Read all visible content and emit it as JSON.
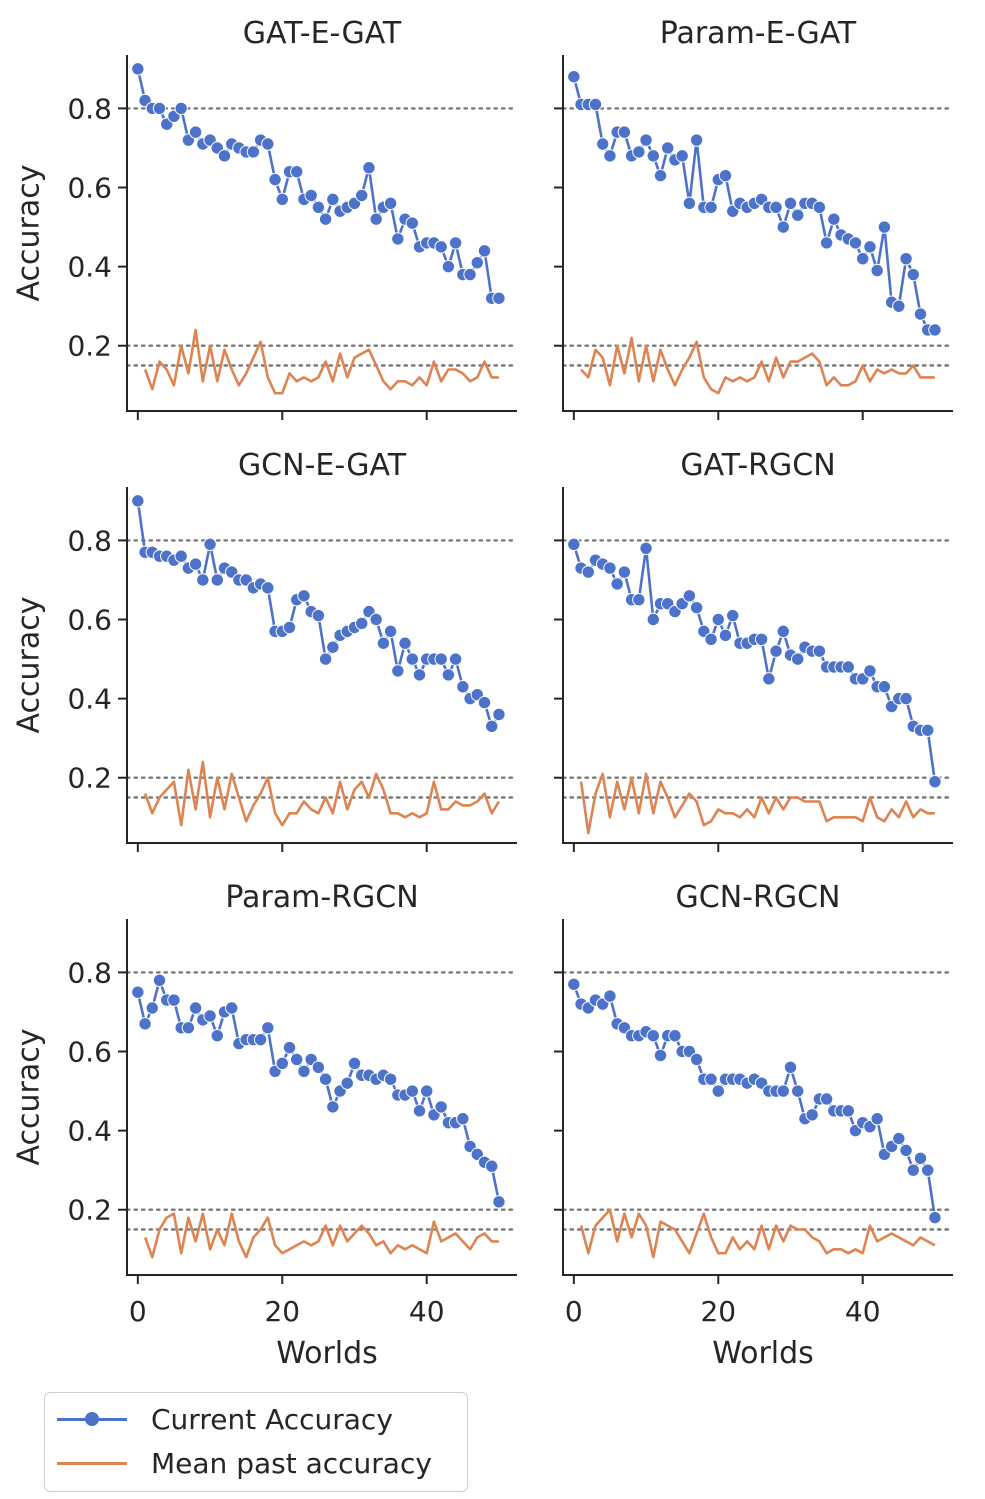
{
  "chart_data": {
    "type": "line",
    "xlabel": "Worlds",
    "ylabel": "Accuracy",
    "xlim": [
      -1.5,
      52.5
    ],
    "ylim": [
      0.035,
      0.935
    ],
    "xticks": [
      0,
      20,
      40
    ],
    "yticks": [
      0.2,
      0.4,
      0.6,
      0.8
    ],
    "reference_lines": [
      0.8,
      0.2,
      0.15
    ],
    "colors": {
      "current": "#4c72c9",
      "past": "#dd8452",
      "reference": "#7a7a7a"
    },
    "series_names": [
      "Current Accuracy",
      "Mean past accuracy"
    ],
    "legend_position": "bottom-left",
    "panels": [
      {
        "title": "GAT-E-GAT",
        "current": [
          0.9,
          0.82,
          0.8,
          0.8,
          0.76,
          0.78,
          0.8,
          0.72,
          0.74,
          0.71,
          0.72,
          0.7,
          0.68,
          0.71,
          0.7,
          0.69,
          0.69,
          0.72,
          0.71,
          0.62,
          0.57,
          0.64,
          0.64,
          0.57,
          0.58,
          0.55,
          0.52,
          0.57,
          0.54,
          0.55,
          0.56,
          0.58,
          0.65,
          0.52,
          0.55,
          0.56,
          0.47,
          0.52,
          0.51,
          0.45,
          0.46,
          0.46,
          0.45,
          0.4,
          0.46,
          0.38,
          0.38,
          0.41,
          0.44,
          0.32,
          0.32
        ],
        "past": [
          null,
          0.14,
          0.09,
          0.16,
          0.14,
          0.1,
          0.2,
          0.13,
          0.24,
          0.11,
          0.2,
          0.11,
          0.19,
          0.14,
          0.1,
          0.13,
          0.17,
          0.21,
          0.12,
          0.08,
          0.08,
          0.13,
          0.11,
          0.12,
          0.11,
          0.12,
          0.16,
          0.11,
          0.18,
          0.12,
          0.17,
          0.18,
          0.19,
          0.15,
          0.11,
          0.09,
          0.11,
          0.11,
          0.1,
          0.12,
          0.1,
          0.16,
          0.11,
          0.14,
          0.14,
          0.13,
          0.11,
          0.12,
          0.16,
          0.12,
          0.12
        ]
      },
      {
        "title": "Param-E-GAT",
        "current": [
          0.88,
          0.81,
          0.81,
          0.81,
          0.71,
          0.68,
          0.74,
          0.74,
          0.68,
          0.69,
          0.72,
          0.68,
          0.63,
          0.7,
          0.67,
          0.68,
          0.56,
          0.72,
          0.55,
          0.55,
          0.62,
          0.63,
          0.54,
          0.56,
          0.55,
          0.56,
          0.57,
          0.55,
          0.55,
          0.5,
          0.56,
          0.53,
          0.56,
          0.56,
          0.55,
          0.46,
          0.52,
          0.48,
          0.47,
          0.46,
          0.42,
          0.45,
          0.39,
          0.5,
          0.31,
          0.3,
          0.42,
          0.38,
          0.28,
          0.24,
          0.24
        ],
        "past": [
          null,
          0.14,
          0.12,
          0.19,
          0.17,
          0.1,
          0.2,
          0.13,
          0.22,
          0.11,
          0.2,
          0.11,
          0.19,
          0.14,
          0.1,
          0.14,
          0.17,
          0.21,
          0.12,
          0.09,
          0.08,
          0.12,
          0.11,
          0.12,
          0.11,
          0.12,
          0.16,
          0.11,
          0.17,
          0.12,
          0.16,
          0.16,
          0.17,
          0.18,
          0.16,
          0.1,
          0.12,
          0.1,
          0.1,
          0.11,
          0.15,
          0.11,
          0.14,
          0.13,
          0.14,
          0.13,
          0.13,
          0.15,
          0.12,
          0.12,
          0.12
        ]
      },
      {
        "title": "GCN-E-GAT",
        "current": [
          0.9,
          0.77,
          0.77,
          0.76,
          0.76,
          0.75,
          0.76,
          0.73,
          0.74,
          0.7,
          0.79,
          0.7,
          0.73,
          0.72,
          0.7,
          0.7,
          0.68,
          0.69,
          0.68,
          0.57,
          0.57,
          0.58,
          0.65,
          0.66,
          0.62,
          0.61,
          0.5,
          0.53,
          0.56,
          0.57,
          0.58,
          0.59,
          0.62,
          0.6,
          0.54,
          0.57,
          0.47,
          0.54,
          0.5,
          0.46,
          0.5,
          0.5,
          0.5,
          0.46,
          0.5,
          0.43,
          0.4,
          0.41,
          0.39,
          0.33,
          0.36
        ],
        "past": [
          null,
          0.16,
          0.11,
          0.15,
          0.17,
          0.19,
          0.08,
          0.22,
          0.12,
          0.24,
          0.1,
          0.2,
          0.12,
          0.21,
          0.15,
          0.09,
          0.13,
          0.16,
          0.2,
          0.11,
          0.08,
          0.11,
          0.11,
          0.14,
          0.12,
          0.11,
          0.15,
          0.11,
          0.19,
          0.12,
          0.17,
          0.19,
          0.15,
          0.21,
          0.17,
          0.11,
          0.11,
          0.1,
          0.11,
          0.1,
          0.11,
          0.19,
          0.12,
          0.12,
          0.14,
          0.13,
          0.13,
          0.14,
          0.16,
          0.11,
          0.14
        ]
      },
      {
        "title": "GAT-RGCN",
        "current": [
          0.79,
          0.73,
          0.72,
          0.75,
          0.74,
          0.73,
          0.69,
          0.72,
          0.65,
          0.65,
          0.78,
          0.6,
          0.64,
          0.64,
          0.62,
          0.64,
          0.66,
          0.63,
          0.57,
          0.55,
          0.6,
          0.56,
          0.61,
          0.54,
          0.54,
          0.55,
          0.55,
          0.45,
          0.52,
          0.57,
          0.51,
          0.5,
          0.53,
          0.52,
          0.52,
          0.48,
          0.48,
          0.48,
          0.48,
          0.45,
          0.45,
          0.47,
          0.43,
          0.43,
          0.38,
          0.4,
          0.4,
          0.33,
          0.32,
          0.32,
          0.19
        ],
        "past": [
          null,
          0.19,
          0.06,
          0.16,
          0.21,
          0.1,
          0.19,
          0.12,
          0.2,
          0.11,
          0.21,
          0.11,
          0.19,
          0.15,
          0.1,
          0.13,
          0.16,
          0.14,
          0.08,
          0.09,
          0.12,
          0.11,
          0.11,
          0.1,
          0.12,
          0.1,
          0.15,
          0.11,
          0.15,
          0.12,
          0.15,
          0.15,
          0.14,
          0.14,
          0.14,
          0.09,
          0.1,
          0.1,
          0.1,
          0.1,
          0.09,
          0.15,
          0.1,
          0.09,
          0.12,
          0.1,
          0.14,
          0.1,
          0.12,
          0.11,
          0.11
        ]
      },
      {
        "title": "Param-RGCN",
        "current": [
          0.75,
          0.67,
          0.71,
          0.78,
          0.73,
          0.73,
          0.66,
          0.66,
          0.71,
          0.68,
          0.69,
          0.64,
          0.7,
          0.71,
          0.62,
          0.63,
          0.63,
          0.63,
          0.66,
          0.55,
          0.57,
          0.61,
          0.58,
          0.55,
          0.58,
          0.56,
          0.53,
          0.46,
          0.5,
          0.52,
          0.57,
          0.54,
          0.54,
          0.53,
          0.54,
          0.53,
          0.49,
          0.49,
          0.5,
          0.45,
          0.5,
          0.44,
          0.46,
          0.42,
          0.42,
          0.43,
          0.36,
          0.34,
          0.32,
          0.31,
          0.22
        ],
        "past": [
          null,
          0.13,
          0.08,
          0.15,
          0.18,
          0.19,
          0.09,
          0.18,
          0.12,
          0.19,
          0.1,
          0.15,
          0.11,
          0.19,
          0.12,
          0.08,
          0.13,
          0.15,
          0.18,
          0.11,
          0.09,
          0.1,
          0.11,
          0.12,
          0.11,
          0.12,
          0.16,
          0.11,
          0.16,
          0.12,
          0.14,
          0.16,
          0.14,
          0.11,
          0.12,
          0.09,
          0.11,
          0.1,
          0.11,
          0.1,
          0.09,
          0.17,
          0.12,
          0.13,
          0.14,
          0.12,
          0.1,
          0.13,
          0.14,
          0.12,
          0.12
        ]
      },
      {
        "title": "GCN-RGCN",
        "current": [
          0.77,
          0.72,
          0.71,
          0.73,
          0.72,
          0.74,
          0.67,
          0.66,
          0.64,
          0.64,
          0.65,
          0.64,
          0.59,
          0.64,
          0.64,
          0.6,
          0.6,
          0.58,
          0.53,
          0.53,
          0.5,
          0.53,
          0.53,
          0.53,
          0.52,
          0.53,
          0.52,
          0.5,
          0.5,
          0.5,
          0.56,
          0.5,
          0.43,
          0.44,
          0.48,
          0.48,
          0.45,
          0.45,
          0.45,
          0.4,
          0.42,
          0.41,
          0.43,
          0.34,
          0.36,
          0.38,
          0.35,
          0.3,
          0.33,
          0.3,
          0.18
        ],
        "past": [
          null,
          0.16,
          0.09,
          0.16,
          0.18,
          0.2,
          0.12,
          0.19,
          0.13,
          0.19,
          0.16,
          0.08,
          0.17,
          0.16,
          0.15,
          0.12,
          0.09,
          0.14,
          0.19,
          0.13,
          0.09,
          0.09,
          0.13,
          0.1,
          0.12,
          0.1,
          0.16,
          0.1,
          0.16,
          0.12,
          0.16,
          0.15,
          0.15,
          0.13,
          0.12,
          0.09,
          0.1,
          0.1,
          0.09,
          0.1,
          0.09,
          0.16,
          0.12,
          0.13,
          0.14,
          0.13,
          0.12,
          0.11,
          0.13,
          0.12,
          0.11
        ]
      }
    ]
  }
}
